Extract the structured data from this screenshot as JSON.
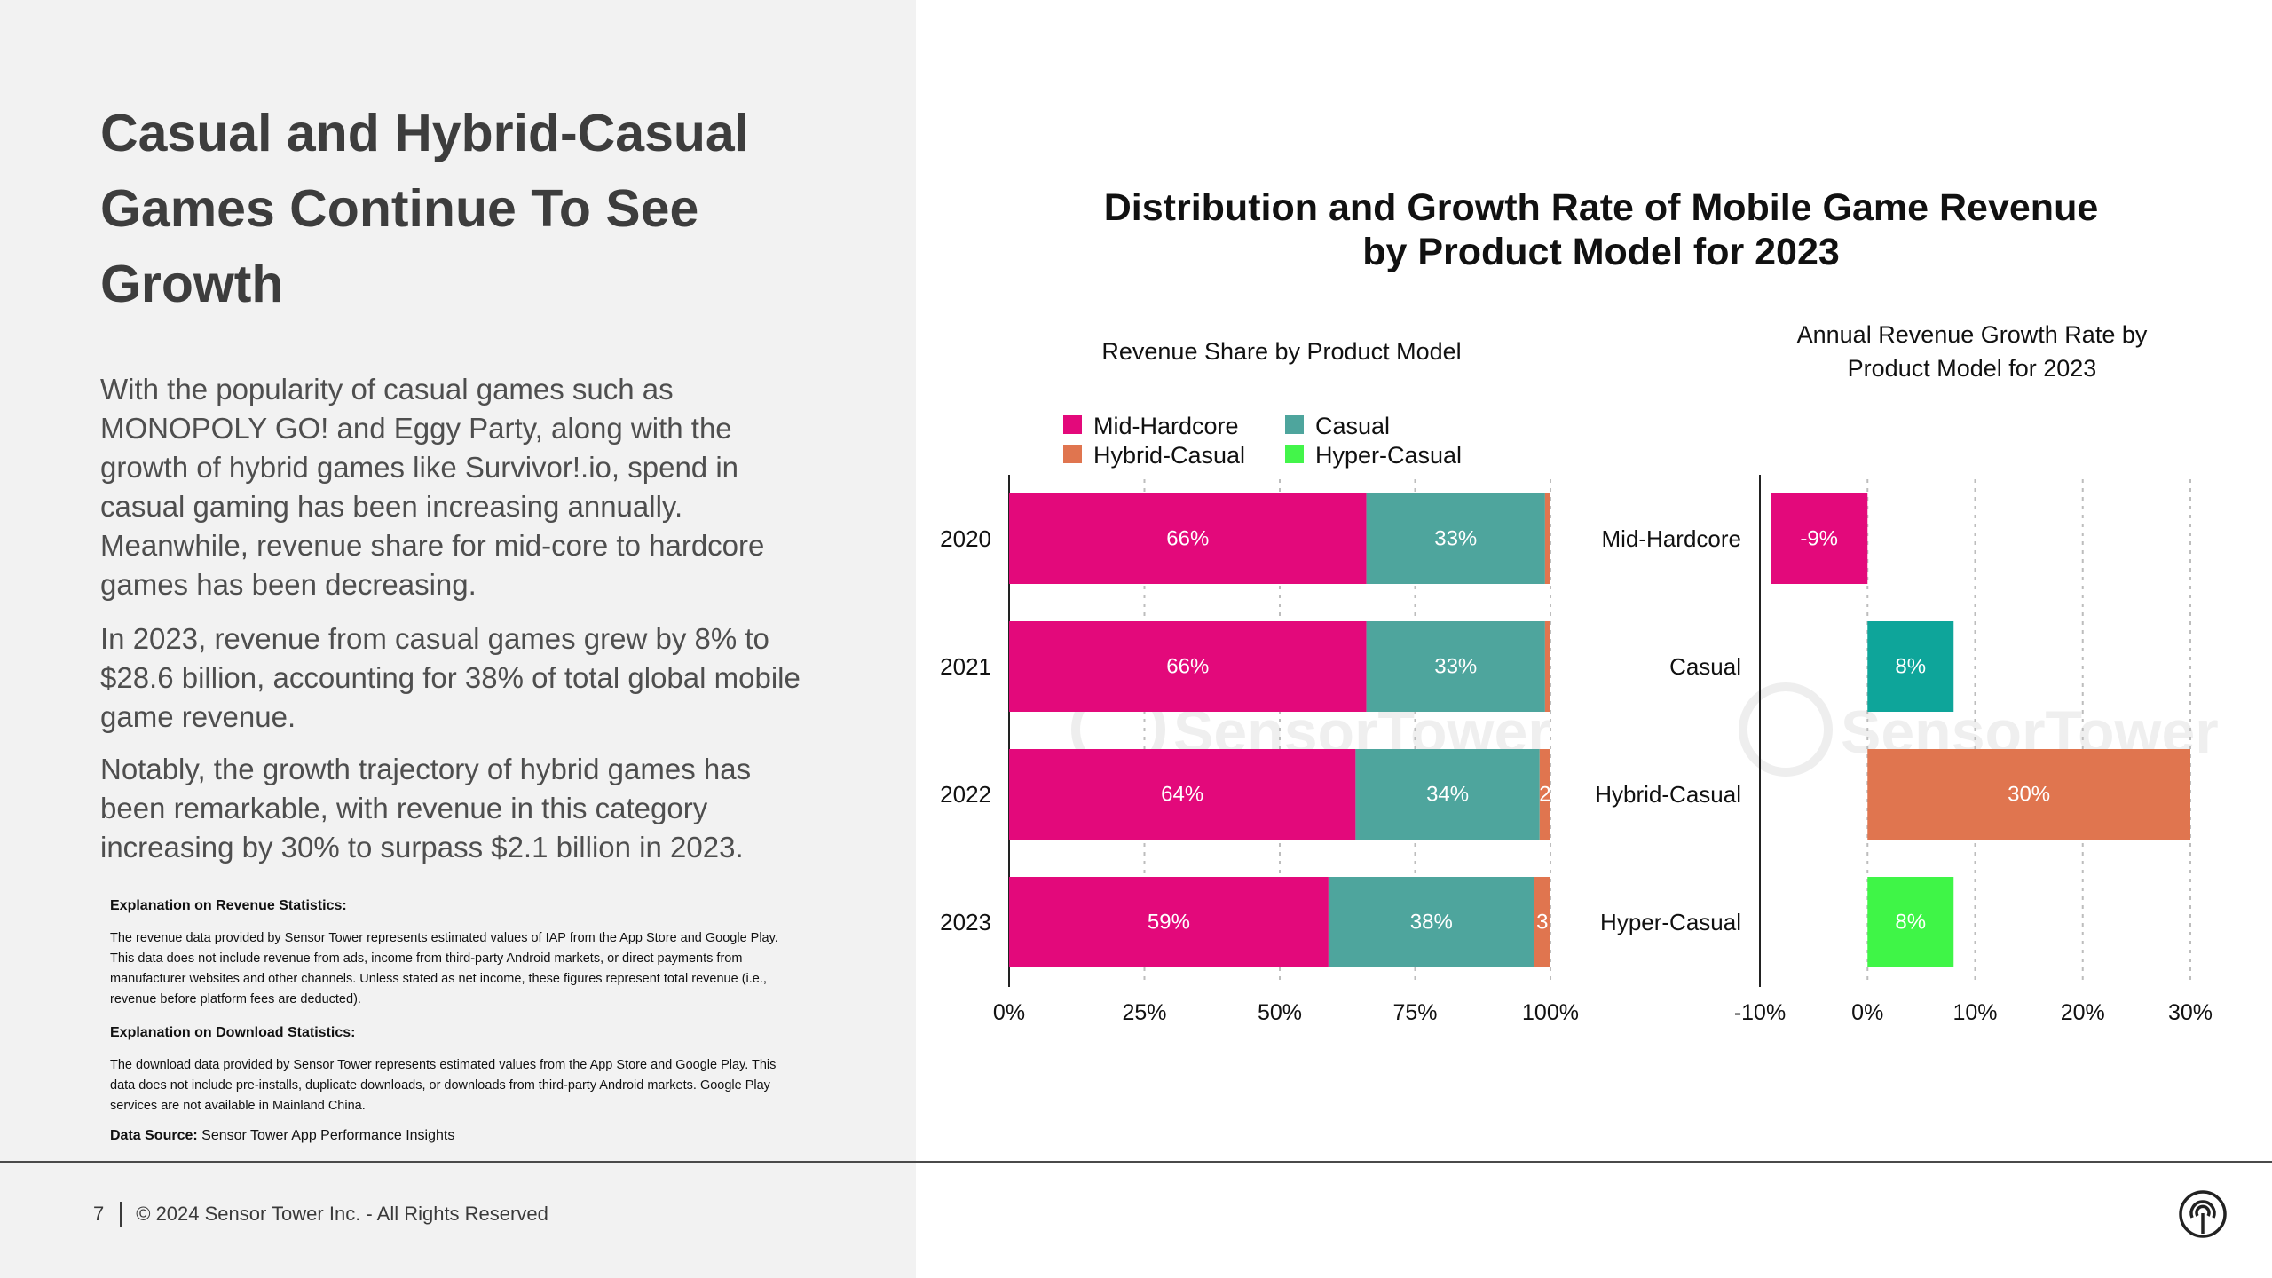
{
  "left": {
    "title": "Casual and Hybrid-Casual Games Continue To See Growth",
    "paragraphs": [
      "With the popularity of casual games such as MONOPOLY GO! and Eggy Party, along with the growth of hybrid games like Survivor!.io, spend in casual gaming has been increasing annually. Meanwhile, revenue share for mid-core to hardcore games has been decreasing.",
      "In 2023, revenue from casual games grew by 8% to $28.6 billion, accounting for 38% of total global mobile game revenue.",
      "Notably, the growth trajectory of hybrid games has been remarkable, with revenue in this category increasing by 30% to surpass $2.1 billion in 2023."
    ],
    "notes": {
      "revenue_heading": "Explanation on Revenue Statistics:",
      "revenue_body": "The revenue data provided by Sensor Tower represents estimated values of IAP  from the App Store and Google Play. This data does not include revenue from ads, income from third-party Android markets, or direct payments from manufacturer websites and other channels. Unless stated as net income, these figures represent total revenue (i.e., revenue before platform fees are deducted).",
      "download_heading": "Explanation on Download Statistics:",
      "download_body": "The download data provided by Sensor Tower represents estimated values from the App Store and Google Play. This data does not include pre-installs, duplicate downloads, or downloads from third-party Android markets. Google Play services are not available in Mainland China.",
      "source_label": "Data Source:",
      "source_value": "Sensor Tower App Performance Insights"
    }
  },
  "footer": {
    "page_number": "7",
    "copyright": "© 2024 Sensor Tower Inc. - All Rights Reserved"
  },
  "watermark": "SensorTower",
  "chart_data": [
    {
      "type": "bar",
      "orientation": "horizontal",
      "stacked": true,
      "title": "Distribution and Growth Rate of Mobile Game Revenue by Product Model for 2023",
      "title_lines": [
        "Distribution and Growth Rate of Mobile Game Revenue",
        "by Product Model for 2023"
      ],
      "subtitle": "Revenue Share by Product Model",
      "categories": [
        "2020",
        "2021",
        "2022",
        "2023"
      ],
      "series": [
        {
          "name": "Mid-Hardcore",
          "color": "#e3097b",
          "values": [
            66,
            66,
            64,
            59
          ],
          "labels": [
            "66%",
            "66%",
            "64%",
            "59%"
          ]
        },
        {
          "name": "Casual",
          "color": "#4ea59d",
          "values": [
            33,
            33,
            34,
            38
          ],
          "labels": [
            "33%",
            "33%",
            "34%",
            "38%"
          ]
        },
        {
          "name": "Hybrid-Casual",
          "color": "#e0754f",
          "values": [
            1,
            1,
            2,
            3
          ],
          "labels": [
            "",
            "",
            "2",
            "3"
          ]
        },
        {
          "name": "Hyper-Casual",
          "color": "#43f54a",
          "values": [
            0,
            0,
            0,
            0
          ],
          "labels": [
            "",
            "",
            "",
            ""
          ]
        }
      ],
      "xlim": [
        0,
        100
      ],
      "xticks": [
        "0%",
        "25%",
        "50%",
        "75%",
        "100%"
      ],
      "legend": "top",
      "grid": true
    },
    {
      "type": "bar",
      "orientation": "horizontal",
      "title": "Annual Revenue Growth Rate by Product Model for 2023",
      "title_lines": [
        "Annual Revenue Growth Rate by",
        "Product Model for 2023"
      ],
      "categories": [
        "Mid-Hardcore",
        "Casual",
        "Hybrid-Casual",
        "Hyper-Casual"
      ],
      "values": [
        -9,
        8,
        30,
        8
      ],
      "labels": [
        "-9%",
        "8%",
        "30%",
        "8%"
      ],
      "colors": [
        "#e3097b",
        "#0ea59a",
        "#e0754f",
        "#3ff547"
      ],
      "xlim": [
        -10,
        30
      ],
      "xticks": [
        "-10%",
        "0%",
        "10%",
        "20%",
        "30%"
      ],
      "grid": true
    }
  ]
}
